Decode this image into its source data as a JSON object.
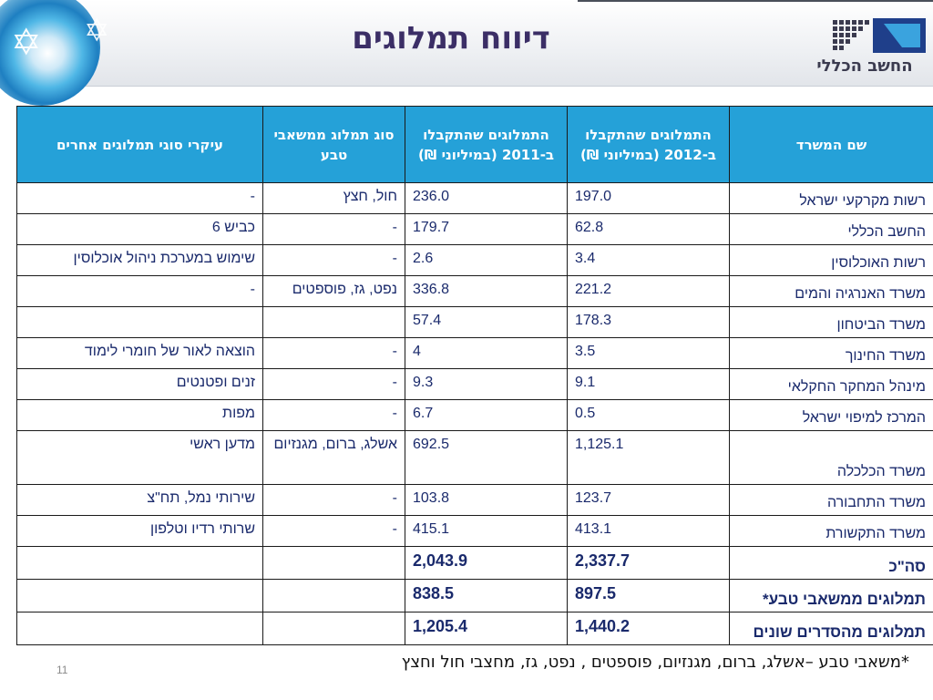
{
  "header": {
    "title": "דיווח תמלוגים",
    "logo_text": "החשב הכללי"
  },
  "table": {
    "columns": [
      "שם המשרד",
      "התמלוגים שהתקבלו ב-2012 (במיליוני ₪)",
      "התמלוגים שהתקבלו ב-2011 (במיליוני ₪)",
      "סוג תמלוג ממשאבי טבע",
      "עיקרי סוגי תמלוגים אחרים"
    ],
    "rows": [
      {
        "office": "רשות מקרקעי ישראל",
        "y2012": "197.0",
        "y2011": "236.0",
        "natural": "חול, חצץ",
        "other": "-"
      },
      {
        "office": "החשב הכללי",
        "y2012": "62.8",
        "y2011": "179.7",
        "natural": "-",
        "other": "כביש 6"
      },
      {
        "office": "רשות האוכלוסין",
        "y2012": "3.4",
        "y2011": "2.6",
        "natural": "-",
        "other": "שימוש במערכת ניהול אוכלוסין"
      },
      {
        "office": "משרד האנרגיה והמים",
        "y2012": "221.2",
        "y2011": "336.8",
        "natural": "נפט, גז, פוספטים",
        "other": "-"
      },
      {
        "office": "משרד הביטחון",
        "y2012": "178.3",
        "y2011": "57.4",
        "natural": "",
        "other": ""
      },
      {
        "office": "משרד החינוך",
        "y2012": "3.5",
        "y2011": "4",
        "natural": "-",
        "other": "הוצאה לאור של חומרי לימוד"
      },
      {
        "office": "מינהל המחקר החקלאי",
        "y2012": "9.1",
        "y2011": "9.3",
        "natural": "-",
        "other": "זנים ופטנטים"
      },
      {
        "office": "המרכז למיפוי ישראל",
        "y2012": "0.5",
        "y2011": "6.7",
        "natural": "-",
        "other": "מפות"
      },
      {
        "office": "משרד הכלכלה",
        "y2012": "1,125.1",
        "y2011": "692.5",
        "natural": "אשלג, ברום, מגנזיום",
        "other": "מדען ראשי"
      },
      {
        "office": "משרד התחבורה",
        "y2012": "123.7",
        "y2011": "103.8",
        "natural": "-",
        "other": "שירותי נמל, תח\"צ"
      },
      {
        "office": "משרד התקשורת",
        "y2012": "413.1",
        "y2011": "415.1",
        "natural": "-",
        "other": "שרותי רדיו וטלפון"
      }
    ],
    "summary": [
      {
        "label": "סה\"כ",
        "y2012": "2,337.7",
        "y2011": "2,043.9"
      },
      {
        "label": "תמלוגים ממשאבי טבע*",
        "y2012": "897.5",
        "y2011": "838.5"
      },
      {
        "label": "תמלוגים מהסדרים שונים",
        "y2012": "1,440.2",
        "y2011": "1,205.4"
      }
    ]
  },
  "footnote": "*משאבי טבע –אשלג, ברום, מגנזיום, פוספטים , נפט, גז, מחצבי חול וחצץ",
  "page_number": "11",
  "colors": {
    "header_cell_bg": "#25a1d8",
    "title_color": "#3b2e66",
    "cell_text": "#1a2a6c"
  },
  "icons": {
    "globe": "globe-star-decoration",
    "logo": "accountant-general-logo"
  }
}
